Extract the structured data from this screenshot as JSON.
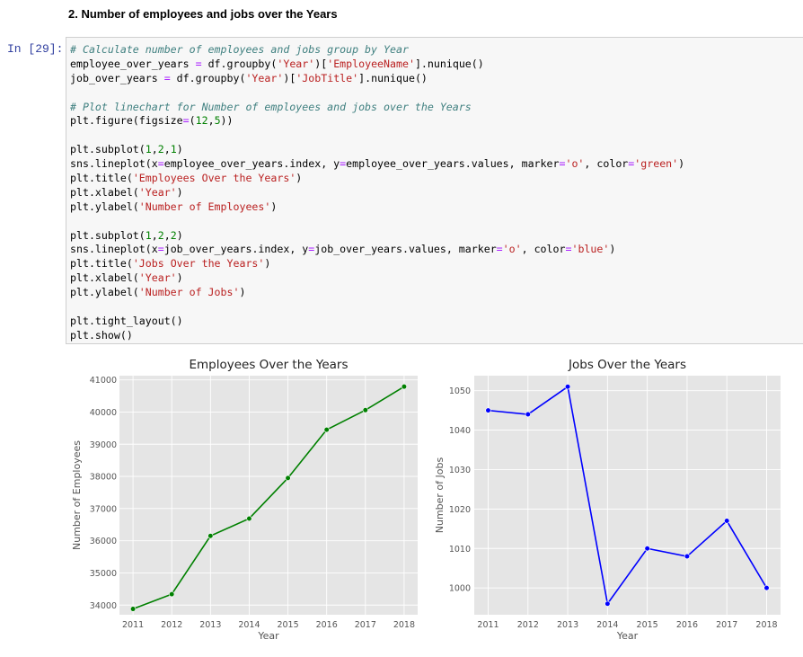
{
  "heading": "2. Number of employees and jobs over the Years",
  "prompt": "In [29]:",
  "code_lines": [
    [
      {
        "t": "# Calculate number of employees and jobs group by Year",
        "c": "cm"
      }
    ],
    [
      {
        "t": "employee_over_years "
      },
      {
        "t": "=",
        "c": "op"
      },
      {
        "t": " df.groupby("
      },
      {
        "t": "'Year'",
        "c": "str"
      },
      {
        "t": ")["
      },
      {
        "t": "'EmployeeName'",
        "c": "str"
      },
      {
        "t": "].nunique()"
      }
    ],
    [
      {
        "t": "job_over_years "
      },
      {
        "t": "=",
        "c": "op"
      },
      {
        "t": " df.groupby("
      },
      {
        "t": "'Year'",
        "c": "str"
      },
      {
        "t": ")["
      },
      {
        "t": "'JobTitle'",
        "c": "str"
      },
      {
        "t": "].nunique()"
      }
    ],
    [],
    [
      {
        "t": "# Plot linechart for Number of employees and jobs over the Years",
        "c": "cm"
      }
    ],
    [
      {
        "t": "plt.figure(figsize"
      },
      {
        "t": "=",
        "c": "op"
      },
      {
        "t": "("
      },
      {
        "t": "12",
        "c": "num"
      },
      {
        "t": ","
      },
      {
        "t": "5",
        "c": "num"
      },
      {
        "t": "))"
      }
    ],
    [],
    [
      {
        "t": "plt.subplot("
      },
      {
        "t": "1",
        "c": "num"
      },
      {
        "t": ","
      },
      {
        "t": "2",
        "c": "num"
      },
      {
        "t": ","
      },
      {
        "t": "1",
        "c": "num"
      },
      {
        "t": ")"
      }
    ],
    [
      {
        "t": "sns.lineplot(x"
      },
      {
        "t": "=",
        "c": "op"
      },
      {
        "t": "employee_over_years.index, y"
      },
      {
        "t": "=",
        "c": "op"
      },
      {
        "t": "employee_over_years.values, marker"
      },
      {
        "t": "=",
        "c": "op"
      },
      {
        "t": "'o'",
        "c": "str"
      },
      {
        "t": ", color"
      },
      {
        "t": "=",
        "c": "op"
      },
      {
        "t": "'green'",
        "c": "str"
      },
      {
        "t": ")"
      }
    ],
    [
      {
        "t": "plt.title("
      },
      {
        "t": "'Employees Over the Years'",
        "c": "str"
      },
      {
        "t": ")"
      }
    ],
    [
      {
        "t": "plt.xlabel("
      },
      {
        "t": "'Year'",
        "c": "str"
      },
      {
        "t": ")"
      }
    ],
    [
      {
        "t": "plt.ylabel("
      },
      {
        "t": "'Number of Employees'",
        "c": "str"
      },
      {
        "t": ")"
      }
    ],
    [],
    [
      {
        "t": "plt.subplot("
      },
      {
        "t": "1",
        "c": "num"
      },
      {
        "t": ","
      },
      {
        "t": "2",
        "c": "num"
      },
      {
        "t": ","
      },
      {
        "t": "2",
        "c": "num"
      },
      {
        "t": ")"
      }
    ],
    [
      {
        "t": "sns.lineplot(x"
      },
      {
        "t": "=",
        "c": "op"
      },
      {
        "t": "job_over_years.index, y"
      },
      {
        "t": "=",
        "c": "op"
      },
      {
        "t": "job_over_years.values, marker"
      },
      {
        "t": "=",
        "c": "op"
      },
      {
        "t": "'o'",
        "c": "str"
      },
      {
        "t": ", color"
      },
      {
        "t": "=",
        "c": "op"
      },
      {
        "t": "'blue'",
        "c": "str"
      },
      {
        "t": ")"
      }
    ],
    [
      {
        "t": "plt.title("
      },
      {
        "t": "'Jobs Over the Years'",
        "c": "str"
      },
      {
        "t": ")"
      }
    ],
    [
      {
        "t": "plt.xlabel("
      },
      {
        "t": "'Year'",
        "c": "str"
      },
      {
        "t": ")"
      }
    ],
    [
      {
        "t": "plt.ylabel("
      },
      {
        "t": "'Number of Jobs'",
        "c": "str"
      },
      {
        "t": ")"
      }
    ],
    [],
    [
      {
        "t": "plt.tight_layout()"
      }
    ],
    [
      {
        "t": "plt.show()"
      }
    ]
  ],
  "colors": {
    "plot_bg": "#e5e5e5",
    "grid": "#ffffff",
    "green": "#008000",
    "blue": "#0000ff",
    "tick": "#555555"
  },
  "chart_data": [
    {
      "type": "line",
      "title": "Employees Over the Years",
      "xlabel": "Year",
      "ylabel": "Number of Employees",
      "x": [
        2011,
        2012,
        2013,
        2014,
        2015,
        2016,
        2017,
        2018
      ],
      "y": [
        33880,
        34340,
        36150,
        36690,
        37950,
        39450,
        40060,
        40790
      ],
      "xticks": [
        "2011",
        "2012",
        "2013",
        "2014",
        "2015",
        "2016",
        "2017",
        "2018"
      ],
      "yticks": [
        34000,
        35000,
        36000,
        37000,
        38000,
        39000,
        40000,
        41000
      ],
      "ytick_labels": [
        "34000",
        "35000",
        "36000",
        "37000",
        "38000",
        "39000",
        "40000",
        "41000"
      ],
      "xlim": [
        2010.65,
        2018.35
      ],
      "ylim": [
        33700,
        41130
      ],
      "color": "green",
      "marker": "o",
      "grid": true
    },
    {
      "type": "line",
      "title": "Jobs Over the Years",
      "xlabel": "Year",
      "ylabel": "Number of Jobs",
      "x": [
        2011,
        2012,
        2013,
        2014,
        2015,
        2016,
        2017,
        2018
      ],
      "y": [
        1045,
        1044,
        1051,
        996,
        1010,
        1008,
        1017,
        1000
      ],
      "xticks": [
        "2011",
        "2012",
        "2013",
        "2014",
        "2015",
        "2016",
        "2017",
        "2018"
      ],
      "yticks": [
        1000,
        1010,
        1020,
        1030,
        1040,
        1050
      ],
      "ytick_labels": [
        "1000",
        "1010",
        "1020",
        "1030",
        "1040",
        "1050"
      ],
      "xlim": [
        2010.65,
        2018.35
      ],
      "ylim": [
        993.2,
        1053.8
      ],
      "color": "blue",
      "marker": "o",
      "grid": true
    }
  ]
}
